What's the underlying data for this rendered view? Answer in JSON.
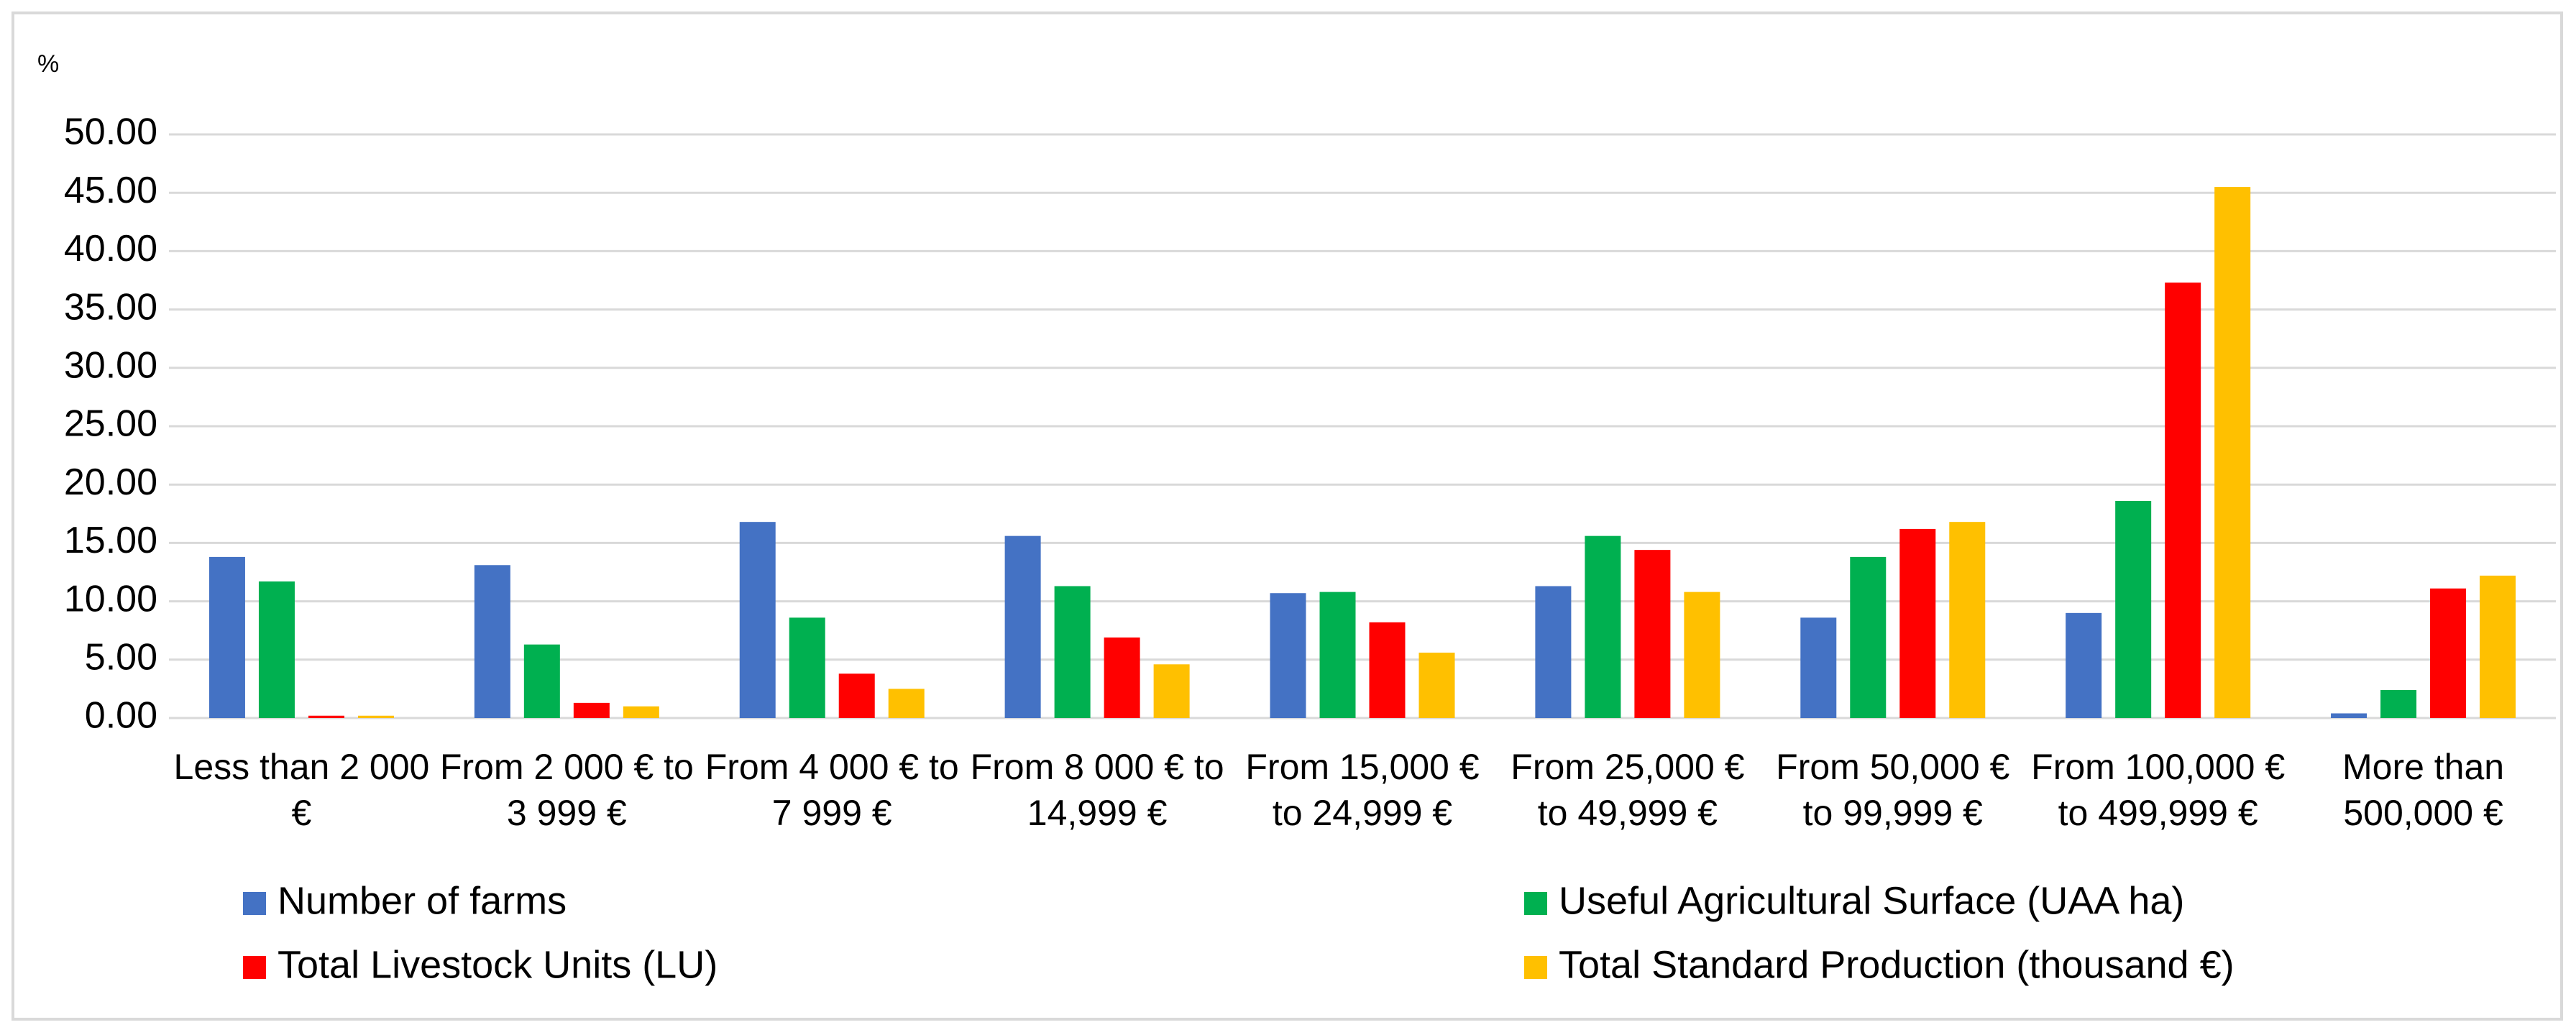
{
  "chart_data": {
    "type": "bar",
    "y_label": "%",
    "categories": [
      "Less than 2 000 €",
      "From 2 000 € to 3 999 €",
      "From 4 000 € to 7 999 €",
      "From 8 000 € to 14,999 €",
      "From 15,000 € to 24,999 €",
      "From 25,000 € to 49,999 €",
      "From 50,000 € to 99,999 €",
      "From 100,000 € to 499,999 €",
      "More than 500,000 €"
    ],
    "series": [
      {
        "name": "Number of farms",
        "color": "#4472c4",
        "values": [
          13.8,
          13.1,
          16.8,
          15.6,
          10.7,
          11.3,
          8.6,
          9.0,
          0.4
        ]
      },
      {
        "name": "Useful Agricultural Surface (UAA ha)",
        "color": "#00b050",
        "values": [
          11.7,
          6.3,
          8.6,
          11.3,
          10.8,
          15.6,
          13.8,
          18.6,
          2.4
        ]
      },
      {
        "name": "Total Livestock Units (LU)",
        "color": "#ff0000",
        "values": [
          0.2,
          1.3,
          3.8,
          6.9,
          8.2,
          14.4,
          16.2,
          37.3,
          11.1
        ]
      },
      {
        "name": "Total Standard Production (thousand €)",
        "color": "#ffc000",
        "values": [
          0.2,
          1.0,
          2.5,
          4.6,
          5.6,
          10.8,
          16.8,
          45.5,
          12.2
        ]
      }
    ],
    "ylim": [
      0,
      50
    ],
    "yticks": [
      {
        "value": 0,
        "label": "0.00"
      },
      {
        "value": 5,
        "label": "5.00"
      },
      {
        "value": 10,
        "label": "10.00"
      },
      {
        "value": 15,
        "label": "15.00"
      },
      {
        "value": 20,
        "label": "20.00"
      },
      {
        "value": 25,
        "label": "25.00"
      },
      {
        "value": 30,
        "label": "30.00"
      },
      {
        "value": 35,
        "label": "35.00"
      },
      {
        "value": 40,
        "label": "40.00"
      },
      {
        "value": 45,
        "label": "45.00"
      },
      {
        "value": 50,
        "label": "50.00"
      }
    ],
    "grid": true,
    "legend": "bottom"
  }
}
